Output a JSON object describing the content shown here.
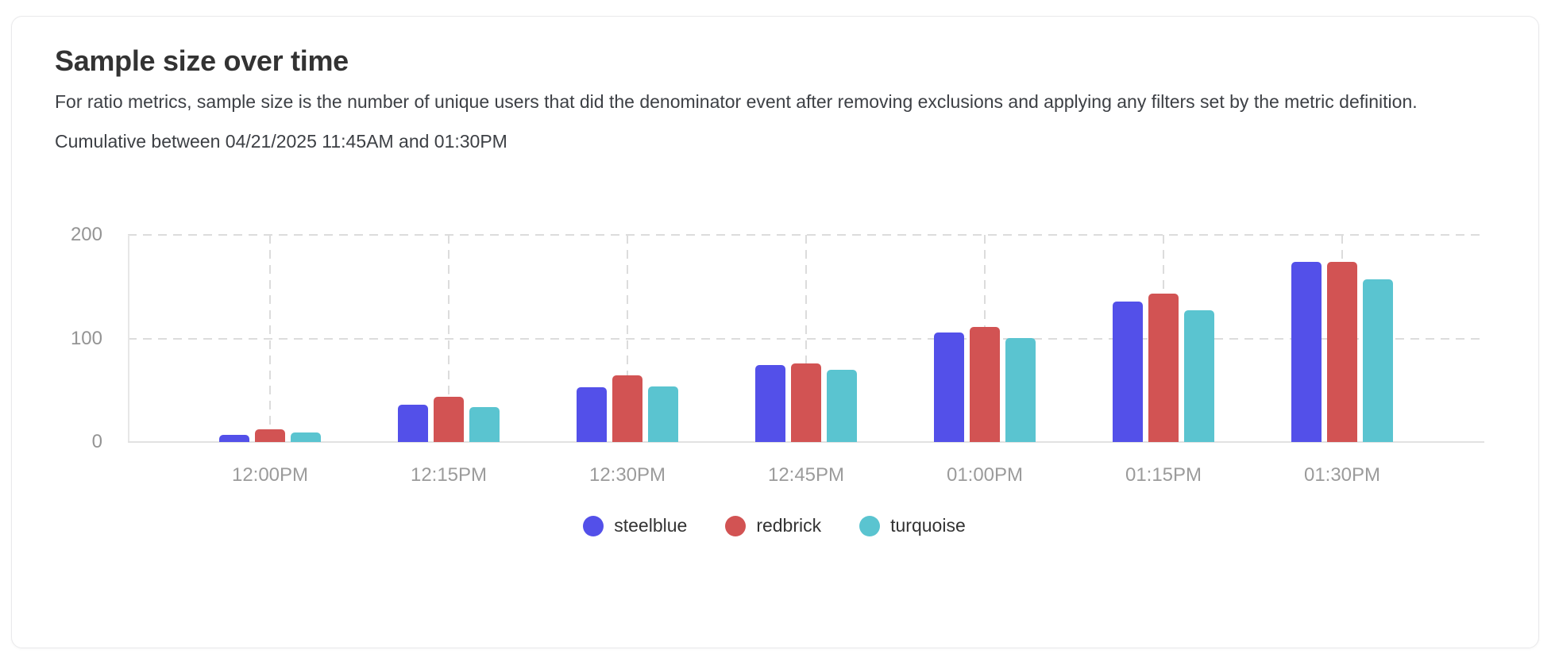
{
  "card": {
    "title": "Sample size over time",
    "description": "For ratio metrics, sample size is the number of unique users that did the denominator event after removing exclusions and applying any filters set by the metric definition.",
    "cumulative_label": "Cumulative between 04/21/2025 11:45AM and 01:30PM"
  },
  "chart_data": {
    "type": "bar",
    "title": "Sample size over time",
    "categories": [
      "12:00PM",
      "12:15PM",
      "12:30PM",
      "12:45PM",
      "01:00PM",
      "01:15PM",
      "01:30PM"
    ],
    "series": [
      {
        "name": "steelblue",
        "color": "#5350e9",
        "values": [
          7,
          36,
          53,
          74,
          106,
          136,
          174
        ]
      },
      {
        "name": "redbrick",
        "color": "#d25353",
        "values": [
          12,
          44,
          64,
          76,
          111,
          143,
          174
        ]
      },
      {
        "name": "turquoise",
        "color": "#5ac4d0",
        "values": [
          9,
          34,
          54,
          70,
          100,
          127,
          157
        ]
      }
    ],
    "xlabel": "",
    "ylabel": "",
    "y_ticks": [
      0,
      100,
      200
    ],
    "ylim": [
      0,
      200
    ],
    "grid": "dashed",
    "legend_position": "bottom",
    "tick_label_color": "#949494",
    "gridline_color": "#dcdcdc"
  }
}
